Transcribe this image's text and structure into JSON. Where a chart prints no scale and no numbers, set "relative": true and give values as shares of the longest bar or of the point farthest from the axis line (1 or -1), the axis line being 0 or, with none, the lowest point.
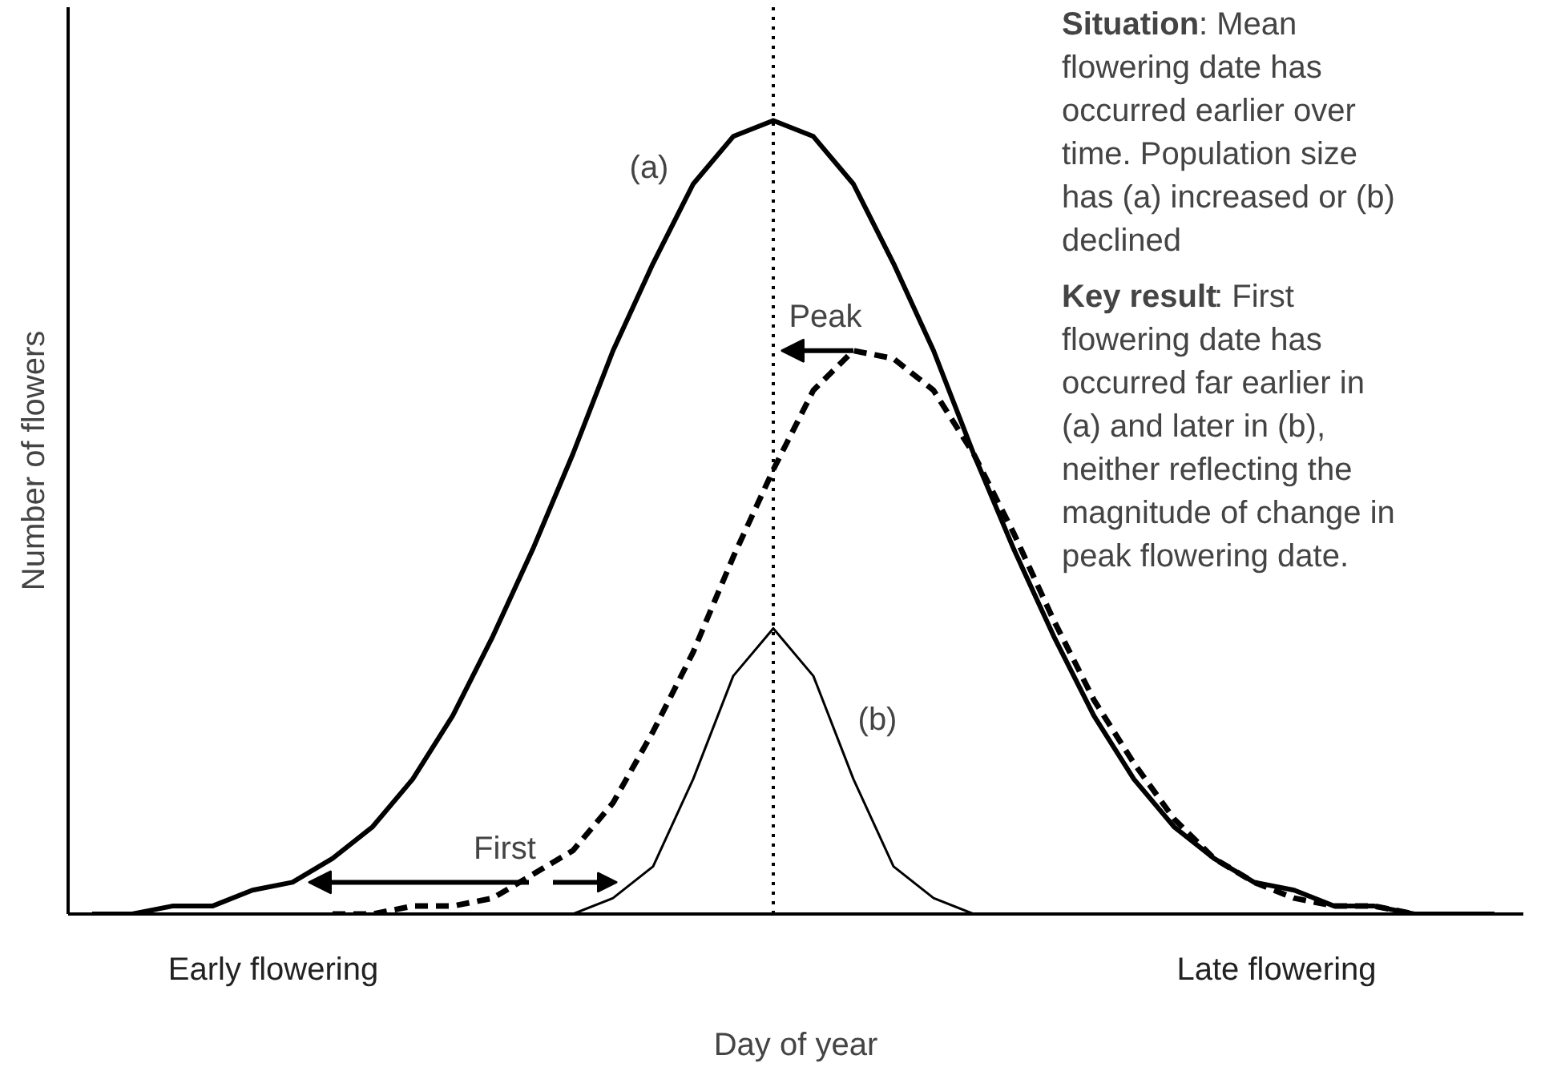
{
  "chart_data": {
    "type": "line",
    "relative": true,
    "xlabel": "Day of year",
    "ylabel": "Number of flowers",
    "categories": [
      null,
      null,
      null,
      null,
      null,
      null,
      null,
      null,
      null,
      null,
      null,
      null,
      null,
      null,
      null,
      null,
      null,
      null,
      null,
      null,
      null,
      null,
      null,
      null,
      null,
      null,
      null,
      null,
      null,
      null,
      null,
      null,
      null,
      null,
      null,
      null
    ],
    "series": [
      {
        "name": "(a)",
        "color": "#000000",
        "line_style": "solid",
        "values": [
          0,
          0,
          0.01,
          0.01,
          0.03,
          0.04,
          0.07,
          0.11,
          0.17,
          0.25,
          0.35,
          0.46,
          0.58,
          0.71,
          0.82,
          0.92,
          0.98,
          1,
          0.98,
          0.92,
          0.82,
          0.71,
          0.58,
          0.46,
          0.35,
          0.25,
          0.17,
          0.11,
          0.07,
          0.04,
          0.03,
          0.01,
          0.01,
          0,
          0,
          0
        ]
      },
      {
        "name": "(b)",
        "color": "#000000",
        "line_style": "solid",
        "values": [
          null,
          null,
          null,
          null,
          null,
          null,
          null,
          0,
          0,
          0,
          0,
          0,
          0,
          0.02,
          0.06,
          0.17,
          0.3,
          0.36,
          0.3,
          0.17,
          0.06,
          0.02,
          0,
          0,
          0,
          0,
          0,
          0,
          null,
          null,
          null,
          null,
          null,
          null,
          null,
          null
        ]
      },
      {
        "color": "#000000",
        "line_style": "dashed",
        "values": [
          null,
          null,
          null,
          null,
          null,
          null,
          0,
          0,
          0.01,
          0.01,
          0.02,
          0.05,
          0.08,
          0.14,
          0.23,
          0.33,
          0.45,
          0.56,
          0.66,
          0.71,
          0.7,
          0.66,
          0.58,
          0.48,
          0.37,
          0.27,
          0.19,
          0.12,
          0.07,
          0.04,
          0.02,
          0.01,
          0.01,
          0,
          null,
          null
        ]
      }
    ],
    "grid": false,
    "legend": false,
    "tick_labels": false,
    "annotations": [
      "Peak",
      "First",
      "Early flowering",
      "Late flowering",
      "Situation: Mean flowering date has occurred earlier over time. Population size has (a) increased or (b) declined",
      "Key result: First flowering date has occurred far earlier in (a) and later in (b), neither reflecting the magnitude of change in peak flowering date."
    ]
  }
}
